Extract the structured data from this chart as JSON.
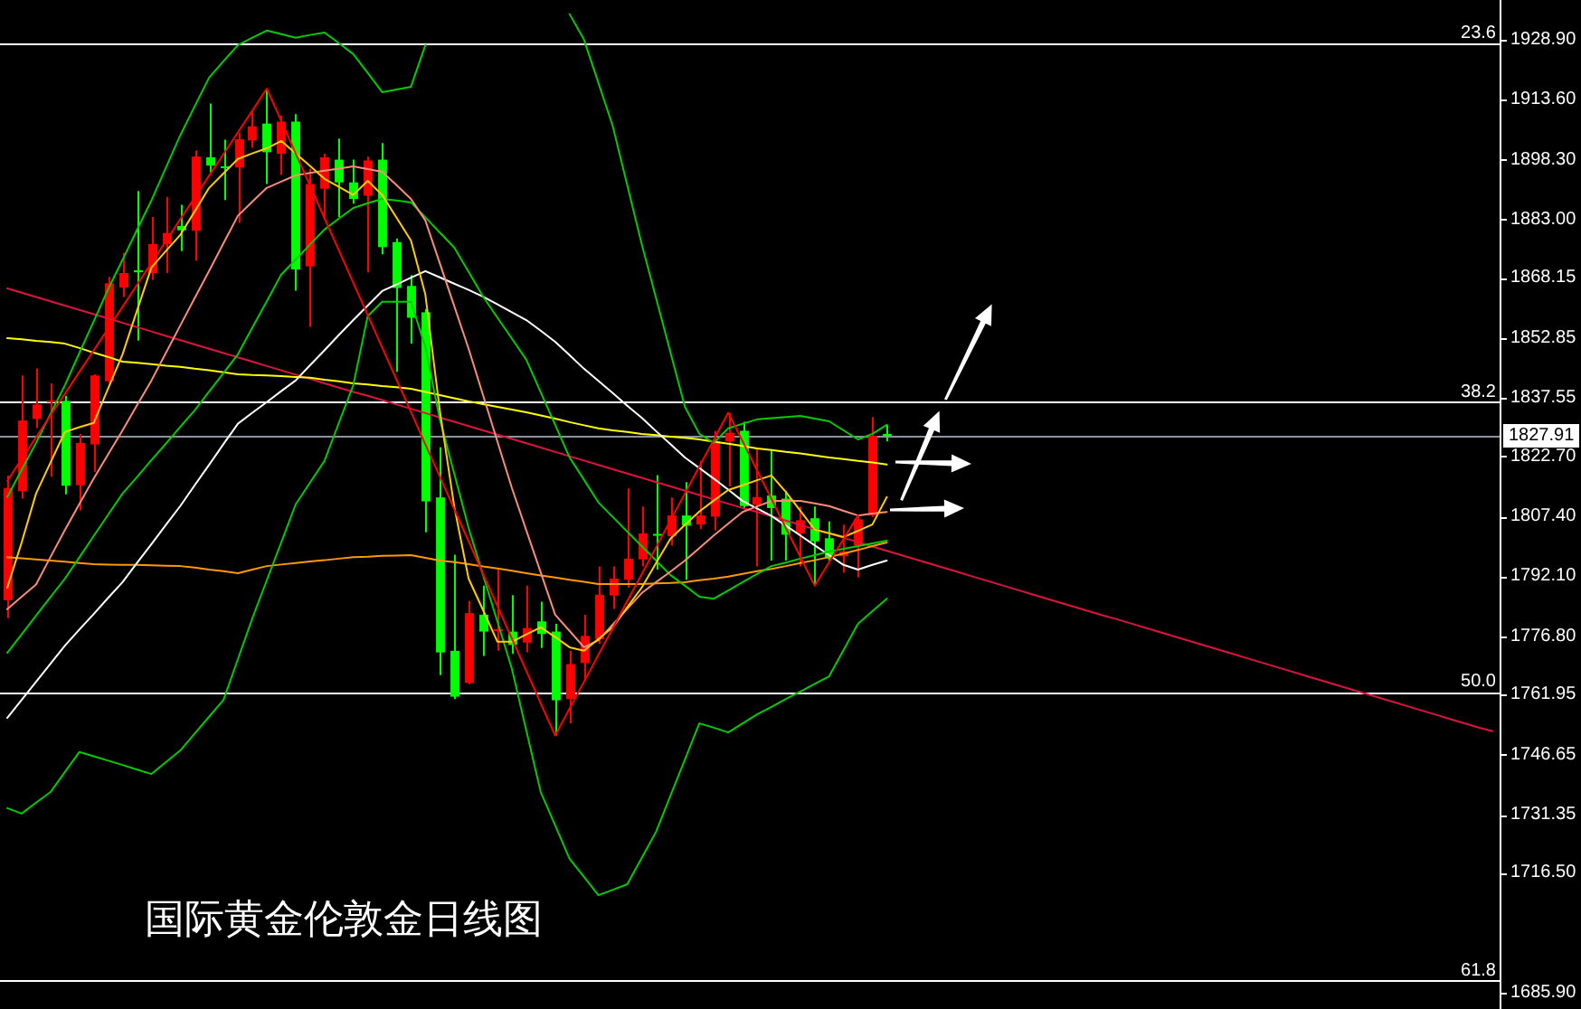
{
  "chart_data": {
    "type": "candlestick",
    "title": "国际黄金伦敦金日线图",
    "categories": [
      null,
      null,
      null,
      null,
      null,
      null,
      null,
      null,
      null,
      null,
      null,
      null,
      null,
      null,
      null,
      null,
      null,
      null,
      null,
      null,
      null,
      null,
      null,
      null,
      null,
      null,
      null,
      null,
      null,
      null,
      null,
      null,
      null,
      null,
      null,
      null,
      null,
      null,
      null,
      null,
      null,
      null,
      null,
      null,
      null,
      null,
      null,
      null,
      null,
      null,
      null,
      null,
      null,
      null,
      null,
      null,
      null,
      null,
      null,
      null,
      null,
      null,
      null,
      null,
      null,
      null,
      null,
      null,
      null,
      null,
      null,
      null,
      null,
      null,
      null,
      null,
      null,
      null,
      null,
      null,
      null,
      null,
      null,
      null,
      null,
      null,
      null,
      null,
      null,
      null,
      null,
      null,
      null,
      null,
      null,
      null,
      null,
      null,
      null,
      null,
      null,
      null,
      null,
      null
    ],
    "ohlc": [
      [
        1786.0,
        1817.8,
        1781.4,
        1814.6
      ],
      [
        1813.8,
        1843.3,
        1811.9,
        1831.8
      ],
      [
        1832.2,
        1845.1,
        1829.9,
        1835.9
      ],
      [
        1836.5,
        1841.3,
        1817.5,
        1836.9
      ],
      [
        1836.8,
        1838.1,
        1813.0,
        1815.2
      ],
      [
        1815.3,
        1828.4,
        1808.9,
        1826.1
      ],
      [
        1825.7,
        1843.6,
        1818.7,
        1843.3
      ],
      [
        1841.8,
        1868.4,
        1841.4,
        1866.8
      ],
      [
        1865.7,
        1874.5,
        1863.3,
        1869.4
      ],
      [
        1870.1,
        1890.3,
        1852.2,
        1869.6
      ],
      [
        1869.4,
        1883.7,
        1867.6,
        1876.8
      ],
      [
        1876.8,
        1888.8,
        1869.4,
        1879.6
      ],
      [
        1881.4,
        1886.8,
        1875.0,
        1880.3
      ],
      [
        1880.2,
        1900.6,
        1872.5,
        1899.1
      ],
      [
        1898.9,
        1912.6,
        1894.9,
        1896.8
      ],
      [
        1896.6,
        1903.4,
        1888.0,
        1896.3
      ],
      [
        1896.3,
        1905.2,
        1882.2,
        1903.5
      ],
      [
        1903.2,
        1910.6,
        1901.4,
        1906.8
      ],
      [
        1907.5,
        1916.4,
        1892.1,
        1900.2
      ],
      [
        1899.8,
        1909.5,
        1894.4,
        1908.0
      ],
      [
        1908.0,
        1909.9,
        1864.9,
        1870.3
      ],
      [
        1871.1,
        1896.0,
        1855.7,
        1892.1
      ],
      [
        1890.9,
        1899.8,
        1882.9,
        1898.9
      ],
      [
        1898.3,
        1903.7,
        1883.7,
        1892.5
      ],
      [
        1892.5,
        1898.3,
        1887.1,
        1888.3
      ],
      [
        1889.1,
        1899.1,
        1869.6,
        1898.1
      ],
      [
        1898.3,
        1902.5,
        1874.2,
        1876.0
      ],
      [
        1877.3,
        1878.2,
        1844.2,
        1865.6
      ],
      [
        1866.1,
        1868.9,
        1851.4,
        1858.0
      ],
      [
        1859.4,
        1860.2,
        1803.3,
        1811.2
      ],
      [
        1812.2,
        1825.0,
        1766.9,
        1772.7
      ],
      [
        1773.1,
        1797.6,
        1760.8,
        1761.4
      ],
      [
        1764.9,
        1785.8,
        1764.6,
        1782.7
      ],
      [
        1782.3,
        1789.7,
        1771.8,
        1778.0
      ],
      [
        1778.1,
        1794.1,
        1773.1,
        1778.6
      ],
      [
        1778.0,
        1787.3,
        1772.3,
        1774.6
      ],
      [
        1775.2,
        1789.7,
        1772.7,
        1778.9
      ],
      [
        1780.6,
        1785.6,
        1773.8,
        1777.4
      ],
      [
        1778.0,
        1780.0,
        1751.5,
        1760.5
      ],
      [
        1760.8,
        1773.1,
        1754.6,
        1769.7
      ],
      [
        1770.0,
        1782.3,
        1765.4,
        1776.9
      ],
      [
        1776.1,
        1794.6,
        1774.9,
        1787.4
      ],
      [
        1787.2,
        1794.6,
        1783.8,
        1791.5
      ],
      [
        1791.2,
        1814.5,
        1789.2,
        1796.6
      ],
      [
        1796.4,
        1809.9,
        1794.6,
        1803.0
      ],
      [
        1802.9,
        1817.9,
        1793.8,
        1802.6
      ],
      [
        1802.3,
        1812.2,
        1799.9,
        1807.6
      ],
      [
        1807.6,
        1816.1,
        1791.2,
        1805.0
      ],
      [
        1805.3,
        1821.5,
        1804.1,
        1807.6
      ],
      [
        1807.3,
        1829.2,
        1803.8,
        1826.5
      ],
      [
        1826.5,
        1833.8,
        1815.0,
        1828.7
      ],
      [
        1829.2,
        1831.5,
        1809.2,
        1810.0
      ],
      [
        1810.3,
        1824.7,
        1794.6,
        1812.3
      ],
      [
        1812.7,
        1824.5,
        1796.1,
        1809.5
      ],
      [
        1811.9,
        1813.8,
        1796.1,
        1802.7
      ],
      [
        1803.0,
        1809.9,
        1794.6,
        1806.4
      ],
      [
        1806.9,
        1809.9,
        1789.7,
        1801.0
      ],
      [
        1801.8,
        1806.1,
        1796.1,
        1796.6
      ],
      [
        1797.2,
        1805.3,
        1793.0,
        1798.4
      ],
      [
        1799.9,
        1807.6,
        1791.8,
        1806.6
      ],
      [
        1807.6,
        1832.7,
        1807.2,
        1827.9
      ],
      [
        1828.4,
        1830.7,
        1826.5,
        1827.91
      ],
      null,
      null,
      null,
      null,
      null,
      null,
      null,
      null,
      null,
      null,
      null,
      null,
      null,
      null,
      null,
      null,
      null,
      null,
      null,
      null,
      null,
      null,
      null,
      null,
      null,
      null,
      null,
      null,
      null,
      null,
      null,
      null,
      null,
      null,
      null,
      null,
      null,
      null,
      null,
      null,
      null,
      null
    ],
    "colors": [
      "#ff0000",
      "#ff0000",
      "#ff0000",
      "#ff0000",
      "#00ff00",
      "#ff0000",
      "#ff0000",
      "#ff0000",
      "#ff0000",
      "#00ff00",
      "#ff0000",
      "#ff0000",
      "#00ff00",
      "#ff0000",
      "#00ff00",
      "#00ff00",
      "#ff0000",
      "#ff0000",
      "#00ff00",
      "#ff0000",
      "#00ff00",
      "#ff0000",
      "#ff0000",
      "#00ff00",
      "#00ff00",
      "#ff0000",
      "#00ff00",
      "#00ff00",
      "#00ff00",
      "#00ff00",
      "#00ff00",
      "#00ff00",
      "#ff0000",
      "#00ff00",
      "#ff0000",
      "#00ff00",
      "#ff0000",
      "#00ff00",
      "#00ff00",
      "#ff0000",
      "#ff0000",
      "#ff0000",
      "#ff0000",
      "#ff0000",
      "#ff0000",
      "#00ff00",
      "#ff0000",
      "#00ff00",
      "#ff0000",
      "#ff0000",
      "#ff0000",
      "#00ff00",
      "#ff0000",
      "#00ff00",
      "#00ff00",
      "#ff0000",
      "#00ff00",
      "#00ff00",
      "#ff0000",
      "#ff0000",
      "#ff0000",
      "#00ff00",
      null,
      null,
      null,
      null,
      null,
      null,
      null,
      null,
      null,
      null,
      null,
      null,
      null,
      null,
      null,
      null,
      null,
      null,
      null,
      null,
      null,
      null,
      null,
      null,
      null,
      null,
      null,
      null,
      null,
      null,
      null,
      null,
      null,
      null,
      null,
      null,
      null,
      null,
      null,
      null,
      null,
      null
    ],
    "series": [
      {
        "type": "line",
        "color": "#dc143c",
        "values": [
          1865.5,
          1864.4,
          1863.3,
          1862.2,
          1861.1,
          1860.0,
          1858.9,
          1857.8,
          1856.7,
          1855.6,
          1854.5,
          1853.4,
          1852.3,
          1851.2,
          1850.1,
          1849.0,
          1847.9,
          1846.8,
          1845.7,
          1844.6,
          1843.5,
          1842.4,
          1841.3,
          1840.2,
          1839.1,
          1838.1,
          1837.0,
          1835.9,
          1834.8,
          1833.7,
          1832.6,
          1831.5,
          1830.4,
          1829.3,
          1828.2,
          1827.1,
          1826.0,
          1824.9,
          1823.8,
          1822.7,
          1821.6,
          1820.5,
          1819.4,
          1818.3,
          1817.2,
          1816.1,
          1815.0,
          1813.9,
          1812.8,
          1811.7,
          1810.6,
          1809.5,
          1808.5,
          1807.4,
          1806.3,
          1805.2,
          1804.1,
          1803.0,
          1801.9,
          1800.8,
          1799.7,
          1798.6,
          1797.5,
          1796.4,
          1795.3,
          1794.2,
          1793.1,
          1792.0,
          1790.9,
          1789.8,
          1788.7,
          1787.6,
          1786.5,
          1785.4,
          1784.3,
          1783.2,
          1782.1,
          1781.1,
          1780.0,
          1778.9,
          1777.8,
          1776.7,
          1775.6,
          1774.5,
          1773.4,
          1772.3,
          1771.2,
          1770.1,
          1769.0,
          1767.9,
          1766.8,
          1765.7,
          1764.6,
          1763.5,
          1762.4,
          1761.3,
          1760.2,
          1759.1,
          1758.0,
          1756.9,
          1755.8,
          1754.7,
          1753.6,
          1752.6
        ]
      },
      {
        "type": "line",
        "color": "#ffff00",
        "values": [
          1852.8,
          1852.5,
          1852.1,
          1851.8,
          1851.4,
          1850.3,
          1849.1,
          1848.0,
          1846.8,
          1846.5,
          1846.2,
          1845.8,
          1845.5,
          1845.0,
          1844.6,
          1844.1,
          1843.6,
          1843.4,
          1843.3,
          1843.1,
          1842.9,
          1842.7,
          1842.2,
          1841.8,
          1841.3,
          1841.0,
          1840.6,
          1840.3,
          1839.9,
          1839.1,
          1838.3,
          1837.5,
          1836.7,
          1836.0,
          1835.3,
          1834.6,
          1833.9,
          1833.1,
          1832.3,
          1831.4,
          1830.6,
          1829.8,
          1829.3,
          1828.9,
          1828.4,
          1828.1,
          1827.7,
          1827.4,
          1827.0,
          1826.4,
          1825.9,
          1825.3,
          1824.7,
          1824.3,
          1823.8,
          1823.4,
          1822.9,
          1822.4,
          1822.0,
          1821.5,
          1821.1,
          1820.6,
          null,
          null,
          null,
          null,
          null,
          null,
          null,
          null,
          null,
          null,
          null,
          null,
          null,
          null,
          null,
          null,
          null,
          null,
          null,
          null,
          null,
          null,
          null,
          null,
          null,
          null,
          null,
          null,
          null,
          null,
          null,
          null,
          null,
          null,
          null,
          null,
          null,
          null,
          null,
          null,
          null,
          null
        ]
      },
      {
        "type": "line",
        "color": "#ff9900",
        "values": [
          1797.0,
          1796.7,
          1796.4,
          1796.1,
          1795.8,
          1795.5,
          1795.2,
          1795.1,
          1795.0,
          1795.0,
          1794.9,
          1794.8,
          1794.7,
          1794.3,
          1793.8,
          1793.4,
          1792.9,
          1793.8,
          1794.7,
          1795.1,
          1795.5,
          1795.9,
          1796.2,
          1796.6,
          1797.0,
          1797.1,
          1797.3,
          1797.4,
          1797.5,
          1796.8,
          1796.1,
          1795.7,
          1795.2,
          1794.6,
          1794.1,
          1793.5,
          1792.9,
          1792.3,
          1791.8,
          1791.2,
          1790.7,
          1790.1,
          1790.1,
          1790.1,
          1790.1,
          1790.3,
          1790.4,
          1790.6,
          1791.1,
          1791.5,
          1792.0,
          1792.7,
          1793.4,
          1794.0,
          1794.7,
          1795.5,
          1796.2,
          1797.0,
          1797.9,
          1798.8,
          1799.8,
          1800.7,
          null,
          null,
          null,
          null,
          null,
          null,
          null,
          null,
          null,
          null,
          null,
          null,
          null,
          null,
          null,
          null,
          null,
          null,
          null,
          null,
          null,
          null,
          null,
          null,
          null,
          null,
          null,
          null,
          null,
          null,
          null,
          null,
          null,
          null,
          null,
          null,
          null,
          null,
          null,
          null,
          null,
          null
        ]
      },
      {
        "type": "line",
        "color": "#ffffff",
        "values": [
          1756.0,
          1760.6,
          1765.2,
          1769.8,
          1774.4,
          1778.5,
          1782.5,
          1786.6,
          1790.6,
          1795.5,
          1800.3,
          1805.2,
          1810.0,
          1815.3,
          1820.5,
          1825.8,
          1831.0,
          1833.8,
          1836.5,
          1839.3,
          1842.0,
          1845.9,
          1849.7,
          1853.6,
          1857.4,
          1861.1,
          1864.8,
          1866.5,
          1868.2,
          1869.9,
          1868.3,
          1866.7,
          1865.1,
          1863.4,
          1861.4,
          1859.4,
          1857.4,
          1854.7,
          1851.9,
          1848.5,
          1845.0,
          1841.9,
          1838.8,
          1835.6,
          1832.5,
          1829.1,
          1825.8,
          1822.4,
          1819.7,
          1817.0,
          1814.2,
          1811.3,
          1809.4,
          1807.5,
          1805.0,
          1802.5,
          1800.0,
          1797.5,
          1795.0,
          1793.8,
          1795.0,
          1796.1,
          null,
          null,
          null,
          null,
          null,
          null,
          null,
          null,
          null,
          null,
          null,
          null,
          null,
          null,
          null,
          null,
          null,
          null,
          null,
          null,
          null,
          null,
          null,
          null,
          null,
          null,
          null,
          null,
          null,
          null,
          null,
          null,
          null,
          null,
          null,
          null,
          null,
          null,
          null,
          null,
          null,
          null
        ]
      },
      {
        "type": "line",
        "color": "#00cc00",
        "values": [
          1812.3,
          1819.2,
          1826.1,
          1833.5,
          1840.8,
          1849.0,
          1857.1,
          1865.3,
          1872.8,
          1880.4,
          1887.9,
          1896.2,
          1904.5,
          1911.9,
          1919.2,
          1923.4,
          1927.5,
          1929.4,
          1931.2,
          1930.3,
          1929.4,
          1930.1,
          1930.7,
          1928.0,
          1925.2,
          1920.4,
          1915.5,
          1916.2,
          1916.9,
          1927.5,
          null,
          null,
          null,
          null,
          null,
          null,
          null,
          null,
          null,
          1935.4,
          1928.9,
          1917.9,
          1906.8,
          1891.8,
          1876.8,
          1863.0,
          1849.1,
          1835.3,
          1828.4,
          1826.1,
          1829.8,
          1831.0,
          1832.1,
          1832.4,
          1832.7,
          1833.0,
          1832.3,
          1831.6,
          1829.3,
          1827.0,
          1828.4,
          1830.7,
          null,
          null,
          null,
          null,
          null,
          null,
          null,
          null,
          null,
          null,
          null,
          null,
          null,
          null,
          null,
          null,
          null,
          null,
          null,
          null,
          null,
          null,
          null,
          null,
          null,
          null,
          null,
          null,
          null,
          null,
          null,
          null,
          null,
          null,
          null,
          null,
          null,
          null,
          null,
          null,
          null,
          null
        ]
      },
      {
        "type": "line",
        "color": "#00cc00",
        "values": [
          1772.6,
          1777.3,
          1782.1,
          1786.8,
          1791.5,
          1796.9,
          1802.4,
          1807.8,
          1813.2,
          1817.4,
          1821.7,
          1825.9,
          1830.2,
          1834.4,
          1839.2,
          1843.9,
          1848.7,
          1855.5,
          1862.2,
          1869.0,
          1872.8,
          1876.7,
          1880.5,
          1883.3,
          1886.0,
          1887.2,
          1888.3,
          1887.9,
          1887.4,
          1883.6,
          1879.7,
          1875.9,
          1869.7,
          1863.4,
          1858.0,
          1852.7,
          1847.3,
          1839.0,
          1830.7,
          1822.4,
          1816.7,
          1810.9,
          1807.2,
          1803.5,
          1799.8,
          1796.1,
          1792.4,
          1789.7,
          1786.9,
          1786.4,
          1788.5,
          1790.6,
          1792.7,
          1794.7,
          1795.6,
          1796.6,
          1797.5,
          1798.4,
          1799.1,
          1799.8,
          1800.5,
          1801.2,
          null,
          null,
          null,
          null,
          null,
          null,
          null,
          null,
          null,
          null,
          null,
          null,
          null,
          null,
          null,
          null,
          null,
          null,
          null,
          null,
          null,
          null,
          null,
          null,
          null,
          null,
          null,
          null,
          null,
          null,
          null,
          null,
          null,
          null,
          null,
          null,
          null,
          null,
          null,
          null,
          null,
          null
        ]
      },
      {
        "type": "line",
        "color": "#00cc00",
        "values": [
          1733.0,
          1731.6,
          1734.4,
          1737.1,
          1742.2,
          1747.3,
          1746.2,
          1745.1,
          1744.0,
          1742.8,
          1741.7,
          1744.7,
          1747.7,
          1752.0,
          1756.3,
          1760.6,
          1771.0,
          1781.4,
          1791.1,
          1800.7,
          1810.4,
          1816.0,
          1821.5,
          1831.2,
          1840.8,
          1858.4,
          1862.1,
          1862.1,
          1862.1,
          1850.5,
          1832.1,
          1818.3,
          1804.4,
          1792.4,
          1780.5,
          1768.5,
          1752.8,
          1737.1,
          1728.6,
          1720.1,
          1715.5,
          1710.8,
          1712.2,
          1713.6,
          1720.3,
          1727.0,
          1736.2,
          1745.4,
          1754.6,
          1753.5,
          1752.3,
          1754.6,
          1756.9,
          1758.8,
          1760.8,
          1762.7,
          1764.7,
          1766.6,
          1773.3,
          1780.0,
          1783.2,
          1786.4,
          null,
          null,
          null,
          null,
          null,
          null,
          null,
          null,
          null,
          null,
          null,
          null,
          null,
          null,
          null,
          null,
          null,
          null,
          null,
          null,
          null,
          null,
          null,
          null,
          null,
          null,
          null,
          null,
          null,
          null,
          null,
          null,
          null,
          null,
          null,
          null,
          null,
          null,
          null,
          null,
          null,
          null
        ]
      },
      {
        "type": "line",
        "color": "#fa8c78",
        "values": [
          1783.7,
          1786.9,
          1790.0,
          1797.0,
          1803.9,
          1810.5,
          1817.0,
          1823.2,
          1829.3,
          1835.7,
          1842.0,
          1849.0,
          1856.0,
          1863.0,
          1869.9,
          1877.0,
          1884.0,
          1887.6,
          1891.1,
          1892.7,
          1894.3,
          1894.9,
          1895.5,
          1896.0,
          1896.6,
          1895.9,
          1895.2,
          1891.8,
          1888.3,
          1882.8,
          1871.9,
          1861.0,
          1850.1,
          1838.3,
          1826.4,
          1814.6,
          1803.8,
          1793.1,
          1782.3,
          1778.2,
          1774.0,
          1775.8,
          1779.8,
          1783.8,
          1787.8,
          1790.6,
          1793.3,
          1796.1,
          1799.3,
          1802.5,
          1805.5,
          1808.5,
          1809.9,
          1811.3,
          1811.3,
          1811.3,
          1810.7,
          1810.0,
          1808.8,
          1807.6,
          1808.1,
          1808.5,
          null,
          null,
          null,
          null,
          null,
          null,
          null,
          null,
          null,
          null,
          null,
          null,
          null,
          null,
          null,
          null,
          null,
          null,
          null,
          null,
          null,
          null,
          null,
          null,
          null,
          null,
          null,
          null,
          null,
          null,
          null,
          null,
          null,
          null,
          null,
          null,
          null,
          null,
          null,
          null,
          null,
          null
        ]
      },
      {
        "type": "line",
        "color": "#ffcc00",
        "values": [
          1789.2,
          1800.7,
          1813.2,
          1821.1,
          1828.9,
          1830.1,
          1831.2,
          1840.0,
          1848.7,
          1859.8,
          1870.8,
          1875.0,
          1879.1,
          1885.1,
          1891.1,
          1894.8,
          1898.5,
          1899.9,
          1901.2,
          1903.1,
          1899.9,
          1896.7,
          1893.4,
          1891.4,
          1889.3,
          1892.9,
          1889.3,
          1883.5,
          1877.7,
          1863.9,
          1834.4,
          1809.9,
          1791.5,
          1783.5,
          1775.4,
          1775.4,
          1777.3,
          1779.1,
          1776.6,
          1774.0,
          1773.1,
          1776.1,
          1779.1,
          1784.2,
          1789.2,
          1795.5,
          1801.7,
          1805.2,
          1808.6,
          1811.4,
          1814.1,
          1815.3,
          1816.6,
          1817.8,
          1813.6,
          1808.8,
          1804.0,
          1803.1,
          1802.1,
          1803.7,
          1805.3,
          1812.3,
          null,
          null,
          null,
          null,
          null,
          null,
          null,
          null,
          null,
          null,
          null,
          null,
          null,
          null,
          null,
          null,
          null,
          null,
          null,
          null,
          null,
          null,
          null,
          null,
          null,
          null,
          null,
          null,
          null,
          null,
          null,
          null,
          null,
          null,
          null,
          null,
          null,
          null,
          null,
          null,
          null,
          null
        ]
      },
      {
        "type": "line",
        "color": "#ff0000",
        "values": [
          1816.4,
          1822.0,
          1827.5,
          1833.1,
          1838.6,
          1844.2,
          1849.7,
          1855.3,
          1860.8,
          1866.4,
          1872.0,
          1877.5,
          1883.1,
          1888.6,
          1894.2,
          1899.7,
          1905.3,
          1910.8,
          1916.4,
          1908.2,
          1899.9,
          1891.7,
          1883.4,
          1875.2,
          1866.9,
          1858.7,
          1850.4,
          1842.2,
          1834.0,
          1825.7,
          1817.5,
          1809.2,
          1801.0,
          1792.7,
          1784.5,
          1776.2,
          1768.0,
          1759.7,
          1751.5,
          1758.4,
          1765.2,
          1772.1,
          1778.9,
          1785.8,
          1792.6,
          1799.5,
          1806.4,
          1813.2,
          1820.1,
          1826.9,
          1833.8,
          1826.5,
          1819.1,
          1811.8,
          1804.4,
          1797.1,
          1789.7,
          1795.7,
          1801.6,
          1807.6,
          null,
          null,
          null,
          null,
          null,
          null,
          null,
          null,
          null,
          null,
          null,
          null,
          null,
          null,
          null,
          null,
          null,
          null,
          null,
          null,
          null,
          null,
          null,
          null,
          null,
          null,
          null,
          null,
          null,
          null,
          null,
          null,
          null,
          null,
          null,
          null,
          null,
          null,
          null,
          null,
          null,
          null,
          null,
          null
        ]
      }
    ],
    "ylim": [
      1681.8,
      1939.0
    ],
    "yticks": [
      {
        "value": 1928.9,
        "label": "1928.90"
      },
      {
        "value": 1913.6,
        "label": "1913.60"
      },
      {
        "value": 1898.3,
        "label": "1898.30"
      },
      {
        "value": 1883,
        "label": "1883.00"
      },
      1868.15,
      1852.85,
      1837.55,
      {
        "value": 1822.7,
        "label": "1822.70"
      },
      {
        "value": 1807.4,
        "label": "1807.40"
      },
      {
        "value": 1792.1,
        "label": "1792.10"
      },
      {
        "value": 1776.8,
        "label": "1776.80"
      },
      1761.95,
      1746.65,
      1731.35,
      {
        "value": 1716.5,
        "label": "1716.50"
      },
      {
        "value": 1685.9,
        "label": "1685.90"
      }
    ],
    "tick_labels": "y",
    "ref_lines": [
      {
        "axis": "y",
        "value": 1927.9,
        "color": "#ffffff"
      },
      {
        "axis": "y",
        "value": 1836.5,
        "color": "#ffffff"
      },
      {
        "axis": "y",
        "value": 1762.6,
        "color": "#ffffff"
      },
      {
        "axis": "y",
        "value": 1689.0,
        "color": "#ffffff"
      },
      {
        "axis": "y",
        "value": 1827.91,
        "label": "1827.91",
        "color": "#8a949e"
      }
    ],
    "annotations": [
      {
        "text": "23.6",
        "y": 1927.9
      },
      {
        "text": "38.2",
        "y": 1836.5
      },
      {
        "text": "50.0",
        "y": 1762.6
      },
      {
        "text": "61.8",
        "y": 1689.0
      }
    ]
  }
}
